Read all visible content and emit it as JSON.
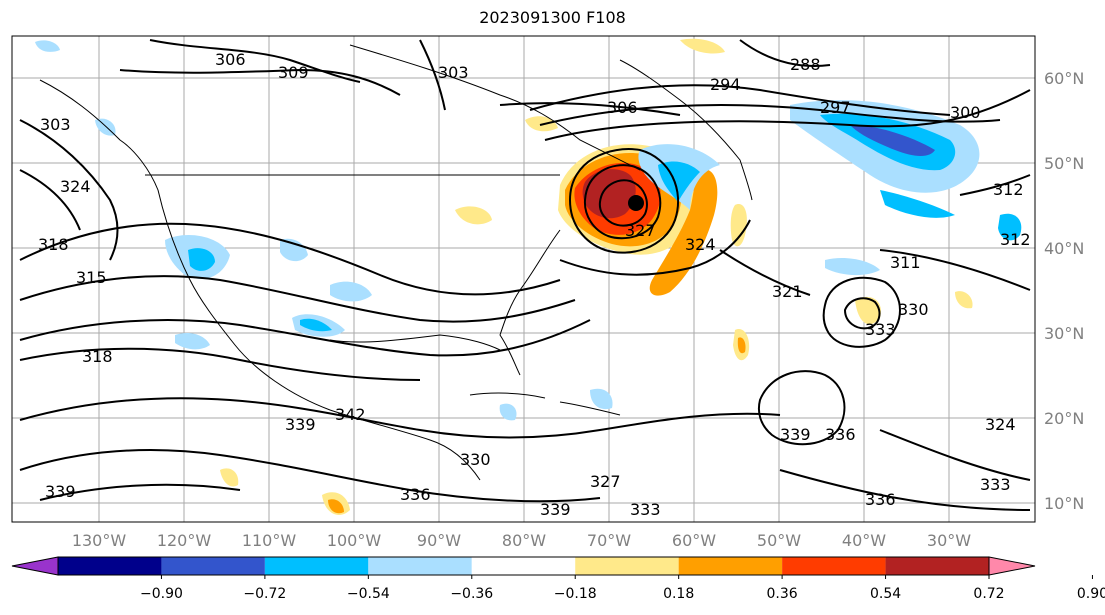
{
  "title": "2023091300 F108",
  "map": {
    "lon_labels": [
      "130°W",
      "120°W",
      "110°W",
      "100°W",
      "90°W",
      "80°W",
      "70°W",
      "60°W",
      "50°W",
      "40°W",
      "30°W"
    ],
    "lat_labels": [
      "60°N",
      "50°N",
      "40°N",
      "30°N",
      "20°N",
      "10°N"
    ],
    "contour_labels": [
      "306",
      "309",
      "303",
      "294",
      "288",
      "297",
      "300",
      "306",
      "303",
      "324",
      "318",
      "315",
      "327",
      "324",
      "312",
      "312",
      "321",
      "311",
      "330",
      "333",
      "318",
      "339",
      "342",
      "339",
      "330",
      "336",
      "336",
      "339",
      "327",
      "339",
      "333",
      "336",
      "333",
      "324"
    ],
    "center_marker": "storm-center"
  },
  "colorbar": {
    "ticks": [
      "−0.90",
      "−0.72",
      "−0.54",
      "−0.36",
      "−0.18",
      "0.18",
      "0.36",
      "0.54",
      "0.72",
      "0.90"
    ],
    "colors": [
      "#9933cc",
      "#00008b",
      "#3355cc",
      "#00bfff",
      "#aadfff",
      "#ffffff",
      "#ffe98a",
      "#ff9f00",
      "#ff3c00",
      "#b22222",
      "#ff88aa"
    ]
  }
}
